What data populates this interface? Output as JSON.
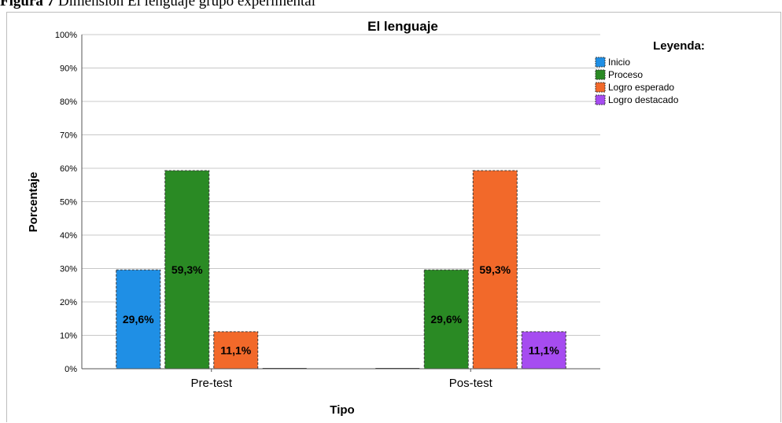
{
  "caption": {
    "label": "Figura 7",
    "text": "Dimensión El lenguaje grupo experimental"
  },
  "chart_data": {
    "type": "bar",
    "title": "El lenguaje",
    "xlabel": "Tipo",
    "ylabel": "Porcentaje",
    "ylim": [
      0,
      100
    ],
    "yticks": [
      "0%",
      "10%",
      "20%",
      "30%",
      "40%",
      "50%",
      "60%",
      "70%",
      "80%",
      "90%",
      "100%"
    ],
    "grid": true,
    "legend_title": "Leyenda:",
    "legend_position": "top-right",
    "categories": [
      "Pre-test",
      "Pos-test"
    ],
    "series": [
      {
        "name": "Inicio",
        "color": "#1f8fe5",
        "values": [
          29.6,
          0
        ],
        "labels": [
          "29,6%",
          ""
        ]
      },
      {
        "name": "Proceso",
        "color": "#2a8a24",
        "values": [
          59.3,
          29.6
        ],
        "labels": [
          "59,3%",
          "29,6%"
        ]
      },
      {
        "name": "Logro esperado",
        "color": "#f2692a",
        "values": [
          11.1,
          59.3
        ],
        "labels": [
          "11,1%",
          "59,3%"
        ]
      },
      {
        "name": "Logro destacado",
        "color": "#a64cf0",
        "values": [
          0,
          11.1
        ],
        "labels": [
          "",
          "11,1%"
        ]
      }
    ]
  }
}
